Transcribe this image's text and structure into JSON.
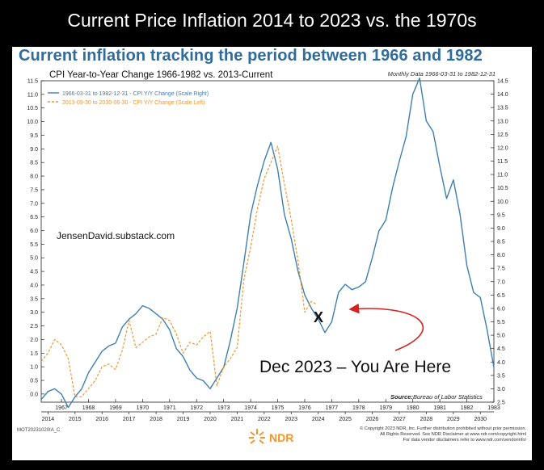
{
  "banner": {
    "title": "Current Price Inflation 2014 to 2023 vs. the 1970s"
  },
  "header": {
    "headline": "Current inflation tracking the period between 1966 and 1982"
  },
  "chart_data": {
    "type": "line",
    "title": "CPI Year-to-Year Change 1966-1982 vs. 2013-Current",
    "subtitle": "Monthly Data 1966-03-31 to 1982-12-31",
    "legend": [
      "1966-03-31 to 1982-12-31 - CPI Y/Y Change (Scale Right)",
      "2013-09-30 to 2030-06-30 - CPI Y/Y Change (Scale Left)"
    ],
    "legend_position": "top-left",
    "colors": {
      "series_1970s": "#3f7fb0",
      "series_current": "#f0962e",
      "annotation": "#d42020"
    },
    "y_left": {
      "ticks": [
        "0.0",
        "0.5",
        "1.0",
        "1.5",
        "2.0",
        "2.5",
        "3.0",
        "3.5",
        "4.0",
        "4.5",
        "5.0",
        "5.5",
        "6.0",
        "6.5",
        "7.0",
        "7.5",
        "8.0",
        "8.5",
        "9.0",
        "9.5",
        "10.0",
        "10.5",
        "11.0",
        "11.5"
      ],
      "range": [
        -0.3,
        11.5
      ]
    },
    "y_right": {
      "ticks": [
        "2.5",
        "3.0",
        "3.5",
        "4.0",
        "4.5",
        "5.0",
        "5.5",
        "6.0",
        "6.5",
        "7.0",
        "7.5",
        "8.0",
        "8.5",
        "9.0",
        "9.5",
        "10.0",
        "10.5",
        "11.0",
        "11.5",
        "12.0",
        "12.5",
        "13.0",
        "13.5",
        "14.0",
        "14.5"
      ],
      "range": [
        2.5,
        14.5
      ]
    },
    "x_top": {
      "ticks": [
        "1967",
        "1968",
        "1969",
        "1970",
        "1971",
        "1972",
        "1973",
        "1974",
        "1975",
        "1976",
        "1977",
        "1978",
        "1979",
        "1980",
        "1981",
        "1982",
        "1983"
      ],
      "range": [
        1966.25,
        1983.0
      ]
    },
    "x_bottom": {
      "ticks": [
        "2014",
        "2015",
        "2016",
        "2017",
        "2018",
        "2019",
        "2020",
        "2021",
        "2022",
        "2023",
        "2024",
        "2025",
        "2026",
        "2027",
        "2028",
        "2029",
        "2030"
      ],
      "range": [
        2013.75,
        2030.5
      ]
    },
    "series": [
      {
        "axis": "right",
        "points": [
          [
            1966.25,
            2.6
          ],
          [
            1966.5,
            2.9
          ],
          [
            1966.75,
            3.0
          ],
          [
            1967.0,
            2.8
          ],
          [
            1967.25,
            2.3
          ],
          [
            1967.5,
            2.7
          ],
          [
            1967.75,
            3.0
          ],
          [
            1968.0,
            3.6
          ],
          [
            1968.25,
            4.0
          ],
          [
            1968.5,
            4.4
          ],
          [
            1968.75,
            4.6
          ],
          [
            1969.0,
            4.7
          ],
          [
            1969.25,
            5.3
          ],
          [
            1969.5,
            5.6
          ],
          [
            1969.75,
            5.8
          ],
          [
            1970.0,
            6.1
          ],
          [
            1970.25,
            6.0
          ],
          [
            1970.5,
            5.8
          ],
          [
            1970.75,
            5.6
          ],
          [
            1971.0,
            5.2
          ],
          [
            1971.25,
            4.5
          ],
          [
            1971.5,
            4.2
          ],
          [
            1971.75,
            3.7
          ],
          [
            1972.0,
            3.4
          ],
          [
            1972.25,
            3.3
          ],
          [
            1972.5,
            3.0
          ],
          [
            1972.75,
            3.4
          ],
          [
            1973.0,
            3.8
          ],
          [
            1973.25,
            4.8
          ],
          [
            1973.5,
            6.0
          ],
          [
            1973.75,
            7.7
          ],
          [
            1974.0,
            9.5
          ],
          [
            1974.25,
            10.6
          ],
          [
            1974.5,
            11.5
          ],
          [
            1974.75,
            12.2
          ],
          [
            1975.0,
            11.2
          ],
          [
            1975.25,
            9.5
          ],
          [
            1975.5,
            8.6
          ],
          [
            1975.75,
            7.4
          ],
          [
            1976.0,
            6.5
          ],
          [
            1976.25,
            6.0
          ],
          [
            1976.5,
            5.6
          ],
          [
            1976.75,
            5.1
          ],
          [
            1977.0,
            5.5
          ],
          [
            1977.25,
            6.6
          ],
          [
            1977.5,
            6.9
          ],
          [
            1977.75,
            6.7
          ],
          [
            1978.0,
            6.8
          ],
          [
            1978.25,
            7.0
          ],
          [
            1978.5,
            7.9
          ],
          [
            1978.75,
            8.9
          ],
          [
            1979.0,
            9.3
          ],
          [
            1979.25,
            10.5
          ],
          [
            1979.5,
            11.5
          ],
          [
            1979.75,
            12.4
          ],
          [
            1980.0,
            14.0
          ],
          [
            1980.25,
            14.6
          ],
          [
            1980.5,
            13.0
          ],
          [
            1980.75,
            12.6
          ],
          [
            1981.0,
            11.3
          ],
          [
            1981.25,
            10.1
          ],
          [
            1981.5,
            10.8
          ],
          [
            1981.75,
            9.5
          ],
          [
            1982.0,
            7.6
          ],
          [
            1982.25,
            6.6
          ],
          [
            1982.5,
            6.4
          ],
          [
            1982.75,
            5.2
          ],
          [
            1983.0,
            3.8
          ]
        ]
      },
      {
        "axis": "left",
        "points": [
          [
            2013.75,
            1.2
          ],
          [
            2014.0,
            1.5
          ],
          [
            2014.25,
            2.0
          ],
          [
            2014.5,
            1.8
          ],
          [
            2014.75,
            1.3
          ],
          [
            2015.0,
            -0.1
          ],
          [
            2015.25,
            -0.1
          ],
          [
            2015.5,
            0.2
          ],
          [
            2015.75,
            0.5
          ],
          [
            2016.0,
            1.0
          ],
          [
            2016.25,
            1.1
          ],
          [
            2016.5,
            0.9
          ],
          [
            2016.75,
            1.6
          ],
          [
            2017.0,
            2.7
          ],
          [
            2017.25,
            1.7
          ],
          [
            2017.5,
            1.9
          ],
          [
            2017.75,
            2.1
          ],
          [
            2018.0,
            2.2
          ],
          [
            2018.25,
            2.8
          ],
          [
            2018.5,
            2.7
          ],
          [
            2018.75,
            2.2
          ],
          [
            2019.0,
            1.5
          ],
          [
            2019.25,
            1.9
          ],
          [
            2019.5,
            1.8
          ],
          [
            2019.75,
            2.1
          ],
          [
            2020.0,
            2.3
          ],
          [
            2020.25,
            0.3
          ],
          [
            2020.5,
            1.0
          ],
          [
            2020.75,
            1.3
          ],
          [
            2021.0,
            1.7
          ],
          [
            2021.25,
            4.2
          ],
          [
            2021.5,
            5.4
          ],
          [
            2021.75,
            6.8
          ],
          [
            2022.0,
            7.9
          ],
          [
            2022.25,
            8.5
          ],
          [
            2022.5,
            9.1
          ],
          [
            2022.75,
            7.7
          ],
          [
            2023.0,
            6.4
          ],
          [
            2023.25,
            4.9
          ],
          [
            2023.5,
            3.0
          ],
          [
            2023.75,
            3.4
          ],
          [
            2023.92,
            3.3
          ]
        ]
      }
    ],
    "annotations": [
      {
        "text": "JensenDavid.substack.com"
      },
      {
        "text": "X"
      },
      {
        "text": "Dec 2023 – You Are Here"
      }
    ],
    "source_label": "Source:",
    "source_value": "Bureau of Labor Statistics"
  },
  "footer": {
    "code": "MOT20231020IA_C",
    "logo": "NDR",
    "copyright_lines": [
      "© Copyright 2023 NDR, Inc. Further distribution prohibited without prior permission.",
      "All Rights Reserved. See NDR Disclaimer at www.ndr.com/copyright.html",
      "For data vendor disclaimers refer to www.ndr.com/vendorinfo/"
    ]
  }
}
